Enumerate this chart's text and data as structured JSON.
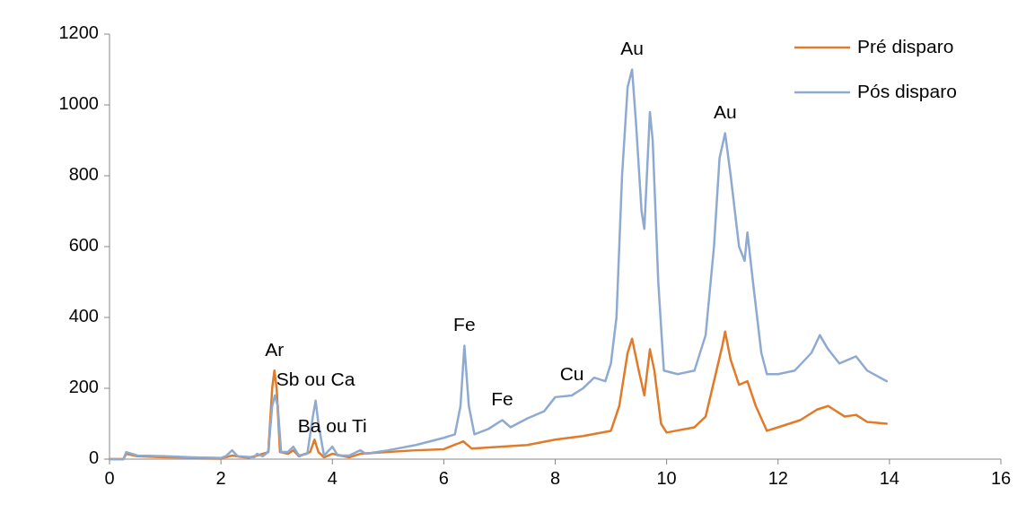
{
  "chart_data": {
    "type": "line",
    "xlim": [
      0,
      16
    ],
    "xticks": [
      0,
      2,
      4,
      6,
      8,
      10,
      12,
      14,
      16
    ],
    "ylim": [
      0,
      1200
    ],
    "yticks": [
      0,
      200,
      400,
      600,
      800,
      1000,
      1200
    ],
    "grid": false,
    "legend": "top right",
    "marker": "none",
    "line_style": "solid",
    "series": [
      {
        "name": "Pré disparo",
        "color": "#e07b2a",
        "x": [
          0,
          0.25,
          0.3,
          0.5,
          1,
          1.5,
          2,
          2.2,
          2.5,
          2.85,
          2.92,
          2.96,
          3.0,
          3.06,
          3.2,
          3.3,
          3.4,
          3.6,
          3.68,
          3.75,
          3.85,
          4.0,
          4.3,
          4.5,
          5,
          5.5,
          6,
          6.35,
          6.5,
          7,
          7.5,
          8,
          8.5,
          9,
          9.15,
          9.3,
          9.38,
          9.5,
          9.6,
          9.7,
          9.78,
          9.9,
          10,
          10.5,
          10.7,
          10.85,
          11,
          11.05,
          11.15,
          11.3,
          11.45,
          11.6,
          11.8,
          12,
          12.4,
          12.7,
          12.9,
          13.2,
          13.4,
          13.6,
          13.95
        ],
        "values": [
          0,
          0,
          15,
          8,
          5,
          3,
          2,
          10,
          3,
          20,
          200,
          250,
          200,
          20,
          15,
          25,
          8,
          20,
          55,
          20,
          5,
          15,
          5,
          15,
          20,
          25,
          28,
          50,
          30,
          35,
          40,
          55,
          65,
          80,
          150,
          300,
          340,
          250,
          180,
          310,
          250,
          100,
          75,
          90,
          120,
          220,
          320,
          360,
          280,
          210,
          220,
          150,
          80,
          90,
          110,
          140,
          150,
          120,
          125,
          105,
          100
        ]
      },
      {
        "name": "Pós disparo",
        "color": "#8faad0",
        "x": [
          0,
          0.25,
          0.3,
          0.5,
          1,
          1.5,
          2,
          2.1,
          2.2,
          2.3,
          2.6,
          2.65,
          2.75,
          2.85,
          2.92,
          2.97,
          3.02,
          3.08,
          3.2,
          3.3,
          3.4,
          3.55,
          3.65,
          3.7,
          3.75,
          3.85,
          4.0,
          4.1,
          4.3,
          4.5,
          4.6,
          5,
          5.5,
          6,
          6.2,
          6.3,
          6.37,
          6.45,
          6.55,
          6.8,
          7.05,
          7.2,
          7.5,
          7.8,
          8.0,
          8.3,
          8.5,
          8.7,
          8.9,
          9.0,
          9.1,
          9.2,
          9.3,
          9.38,
          9.45,
          9.55,
          9.6,
          9.7,
          9.75,
          9.85,
          9.95,
          10.2,
          10.5,
          10.7,
          10.85,
          10.95,
          11.05,
          11.15,
          11.3,
          11.4,
          11.45,
          11.55,
          11.7,
          11.8,
          12.0,
          12.3,
          12.6,
          12.75,
          12.9,
          13.1,
          13.4,
          13.6,
          13.95
        ],
        "values": [
          0,
          0,
          20,
          10,
          8,
          5,
          3,
          10,
          25,
          8,
          5,
          15,
          8,
          20,
          150,
          180,
          150,
          20,
          20,
          35,
          10,
          15,
          120,
          165,
          100,
          10,
          35,
          10,
          10,
          25,
          15,
          25,
          40,
          60,
          70,
          150,
          320,
          150,
          70,
          85,
          110,
          90,
          115,
          135,
          175,
          180,
          200,
          230,
          220,
          270,
          400,
          800,
          1050,
          1100,
          950,
          700,
          650,
          980,
          900,
          500,
          250,
          240,
          250,
          350,
          600,
          850,
          920,
          800,
          600,
          560,
          640,
          500,
          300,
          240,
          240,
          250,
          300,
          350,
          310,
          270,
          290,
          250,
          220
        ]
      }
    ],
    "annotations": [
      {
        "text": "Ar",
        "x": 2.96,
        "y": 250
      },
      {
        "text": "Sb ou Ca",
        "x": 3.7,
        "y": 165
      },
      {
        "text": "Ba ou Ti",
        "x": 4.0,
        "y": 35
      },
      {
        "text": "Fe",
        "x": 6.37,
        "y": 320
      },
      {
        "text": "Fe",
        "x": 7.05,
        "y": 110
      },
      {
        "text": "Cu",
        "x": 8.3,
        "y": 180
      },
      {
        "text": "Au",
        "x": 9.38,
        "y": 1100
      },
      {
        "text": "Au",
        "x": 11.05,
        "y": 920
      }
    ]
  }
}
